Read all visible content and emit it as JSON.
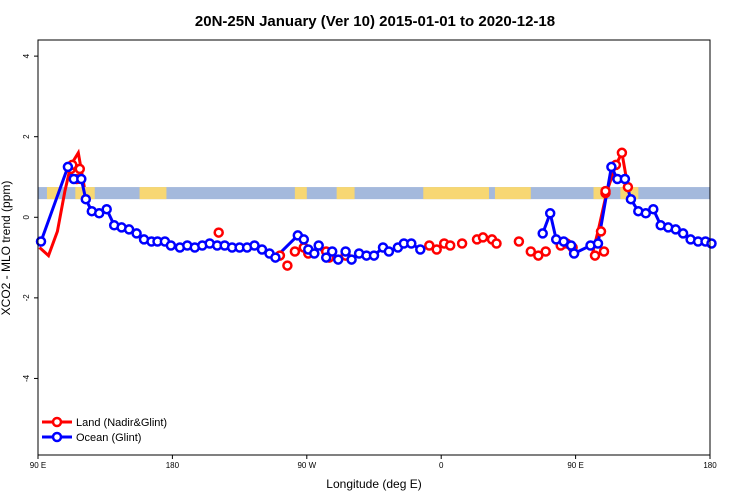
{
  "chart_data": {
    "type": "line",
    "title": "20N-25N January (Ver 10)   2015-01-01 to 2020-12-18",
    "xlabel": "Longitude (deg E)",
    "ylabel": "XCO2 - MLO trend (ppm)",
    "xlim": [
      90,
      540
    ],
    "ylim": [
      -5.9,
      4.4
    ],
    "x_ticks": [
      {
        "value": 90,
        "label": "90 E"
      },
      {
        "value": 180,
        "label": "180"
      },
      {
        "value": 270,
        "label": "90 W"
      },
      {
        "value": 360,
        "label": "0"
      },
      {
        "value": 450,
        "label": "90 E"
      },
      {
        "value": 540,
        "label": "180"
      }
    ],
    "y_ticks": [
      -4,
      -2,
      0,
      2,
      4
    ],
    "grid": false,
    "legend_position": "bottom-left",
    "land_ocean_strip": {
      "y_range": [
        0.45,
        0.75
      ],
      "ocean_color": "#a4b9dc",
      "land_color": "#f7d773"
    },
    "series": [
      {
        "name": "Land (Nadir&Glint)",
        "color": "#ff0000",
        "segments": [
          [
            [
              91,
              -0.75
            ],
            [
              97,
              -0.95
            ],
            [
              103,
              -0.35
            ],
            [
              108,
              0.65
            ],
            [
              113,
              1.3
            ],
            [
              117,
              1.6
            ],
            [
              121,
              0.75
            ]
          ],
          [
            [
              112,
              1.2
            ],
            [
              116,
              0.95
            ]
          ]
        ],
        "points": [
          [
            112,
            1.2
          ],
          [
            116,
            0.95
          ],
          [
            113,
            1.3
          ],
          [
            118,
            1.2
          ],
          [
            211,
            -0.38
          ],
          [
            252,
            -0.95
          ],
          [
            257,
            -1.2
          ],
          [
            262,
            -0.85
          ],
          [
            268,
            -0.75
          ],
          [
            271,
            -0.9
          ],
          [
            283,
            -0.85
          ],
          [
            286,
            -0.95
          ],
          [
            285,
            -1.0
          ],
          [
            296,
            -0.95
          ],
          [
            352,
            -0.7
          ],
          [
            357,
            -0.8
          ],
          [
            362,
            -0.65
          ],
          [
            366,
            -0.7
          ],
          [
            374,
            -0.65
          ],
          [
            384,
            -0.55
          ],
          [
            388,
            -0.5
          ],
          [
            394,
            -0.55
          ],
          [
            397,
            -0.65
          ],
          [
            412,
            -0.6
          ],
          [
            420,
            -0.85
          ],
          [
            425,
            -0.95
          ],
          [
            430,
            -0.85
          ],
          [
            440,
            -0.7
          ],
          [
            444,
            -0.65
          ],
          [
            448,
            -0.75
          ],
          [
            463,
            -0.95
          ],
          [
            469,
            -0.85
          ],
          [
            467,
            -0.35
          ],
          [
            470,
            0.6
          ],
          [
            470,
            0.65
          ],
          [
            477,
            1.3
          ],
          [
            481,
            1.6
          ],
          [
            485,
            0.75
          ]
        ],
        "line_points": [
          [
            91,
            -0.75
          ],
          [
            97,
            -0.95
          ],
          [
            103,
            -0.35
          ],
          [
            108,
            0.65
          ],
          [
            112,
            1.3
          ],
          [
            117,
            1.6
          ],
          [
            121,
            0.75
          ],
          [
            461,
            -0.95
          ],
          [
            465,
            -0.35
          ],
          [
            471,
            0.65
          ],
          [
            477,
            1.3
          ],
          [
            481,
            1.6
          ],
          [
            485,
            0.75
          ]
        ]
      },
      {
        "name": "Ocean (Glint)",
        "color": "#0000ff",
        "points": [
          [
            92,
            -0.6
          ],
          [
            110,
            1.25
          ],
          [
            114,
            0.95
          ],
          [
            119,
            0.95
          ],
          [
            122,
            0.45
          ],
          [
            126,
            0.15
          ],
          [
            131,
            0.1
          ],
          [
            136,
            0.2
          ],
          [
            141,
            -0.2
          ],
          [
            146,
            -0.25
          ],
          [
            151,
            -0.3
          ],
          [
            156,
            -0.4
          ],
          [
            161,
            -0.55
          ],
          [
            166,
            -0.6
          ],
          [
            170,
            -0.6
          ],
          [
            175,
            -0.6
          ],
          [
            179,
            -0.7
          ],
          [
            185,
            -0.75
          ],
          [
            190,
            -0.7
          ],
          [
            195,
            -0.75
          ],
          [
            200,
            -0.7
          ],
          [
            205,
            -0.65
          ],
          [
            210,
            -0.7
          ],
          [
            215,
            -0.7
          ],
          [
            220,
            -0.75
          ],
          [
            225,
            -0.75
          ],
          [
            230,
            -0.75
          ],
          [
            235,
            -0.7
          ],
          [
            240,
            -0.8
          ],
          [
            245,
            -0.9
          ],
          [
            249,
            -1.0
          ],
          [
            264,
            -0.45
          ],
          [
            268,
            -0.55
          ],
          [
            271,
            -0.8
          ],
          [
            275,
            -0.9
          ],
          [
            278,
            -0.7
          ],
          [
            283,
            -1.0
          ],
          [
            287,
            -0.85
          ],
          [
            291,
            -1.05
          ],
          [
            296,
            -0.85
          ],
          [
            300,
            -1.05
          ],
          [
            305,
            -0.9
          ],
          [
            310,
            -0.95
          ],
          [
            315,
            -0.95
          ],
          [
            321,
            -0.75
          ],
          [
            325,
            -0.85
          ],
          [
            331,
            -0.75
          ],
          [
            335,
            -0.65
          ],
          [
            340,
            -0.65
          ],
          [
            346,
            -0.8
          ],
          [
            428,
            -0.4
          ],
          [
            433,
            0.1
          ],
          [
            437,
            -0.55
          ],
          [
            442,
            -0.6
          ],
          [
            447,
            -0.7
          ],
          [
            449,
            -0.9
          ],
          [
            460,
            -0.7
          ],
          [
            465,
            -0.65
          ],
          [
            474,
            1.25
          ],
          [
            478,
            0.95
          ],
          [
            483,
            0.95
          ],
          [
            487,
            0.45
          ],
          [
            492,
            0.15
          ],
          [
            497,
            0.1
          ],
          [
            502,
            0.2
          ],
          [
            507,
            -0.2
          ],
          [
            512,
            -0.25
          ],
          [
            517,
            -0.3
          ],
          [
            522,
            -0.4
          ],
          [
            527,
            -0.55
          ],
          [
            532,
            -0.6
          ],
          [
            537,
            -0.6
          ],
          [
            541,
            -0.65
          ]
        ],
        "line_points": [
          [
            92,
            -0.6
          ],
          [
            110,
            1.25
          ],
          [
            114,
            0.95
          ],
          [
            119,
            0.95
          ],
          [
            122,
            0.45
          ],
          [
            126,
            0.15
          ],
          [
            131,
            0.1
          ],
          [
            136,
            0.2
          ],
          [
            141,
            -0.2
          ],
          [
            146,
            -0.25
          ],
          [
            151,
            -0.3
          ],
          [
            156,
            -0.4
          ],
          [
            161,
            -0.55
          ],
          [
            166,
            -0.6
          ],
          [
            170,
            -0.6
          ],
          [
            175,
            -0.6
          ],
          [
            179,
            -0.7
          ],
          [
            185,
            -0.75
          ],
          [
            190,
            -0.7
          ],
          [
            195,
            -0.75
          ],
          [
            200,
            -0.7
          ],
          [
            205,
            -0.65
          ],
          [
            210,
            -0.7
          ],
          [
            215,
            -0.7
          ],
          [
            220,
            -0.75
          ],
          [
            225,
            -0.75
          ],
          [
            230,
            -0.75
          ],
          [
            235,
            -0.7
          ],
          [
            240,
            -0.8
          ],
          [
            245,
            -0.9
          ],
          [
            249,
            -1.0
          ],
          [
            264,
            -0.45
          ],
          [
            268,
            -0.55
          ],
          [
            271,
            -0.8
          ],
          [
            275,
            -0.9
          ],
          [
            278,
            -0.7
          ],
          [
            283,
            -1.0
          ],
          [
            287,
            -0.85
          ],
          [
            291,
            -1.05
          ],
          [
            296,
            -0.85
          ],
          [
            300,
            -1.05
          ],
          [
            305,
            -0.9
          ],
          [
            310,
            -0.95
          ],
          [
            315,
            -0.95
          ],
          [
            321,
            -0.75
          ],
          [
            325,
            -0.85
          ],
          [
            331,
            -0.75
          ],
          [
            335,
            -0.65
          ],
          [
            340,
            -0.65
          ],
          [
            346,
            -0.8
          ],
          [
            428,
            -0.4
          ],
          [
            433,
            0.1
          ],
          [
            437,
            -0.55
          ],
          [
            442,
            -0.6
          ],
          [
            447,
            -0.7
          ],
          [
            449,
            -0.9
          ],
          [
            460,
            -0.7
          ],
          [
            465,
            -0.65
          ],
          [
            474,
            1.25
          ],
          [
            478,
            0.95
          ],
          [
            483,
            0.95
          ],
          [
            487,
            0.45
          ],
          [
            492,
            0.15
          ],
          [
            497,
            0.1
          ],
          [
            502,
            0.2
          ],
          [
            507,
            -0.2
          ],
          [
            512,
            -0.25
          ],
          [
            517,
            -0.3
          ],
          [
            522,
            -0.4
          ],
          [
            527,
            -0.55
          ],
          [
            532,
            -0.6
          ],
          [
            537,
            -0.6
          ],
          [
            541,
            -0.65
          ]
        ]
      }
    ]
  }
}
